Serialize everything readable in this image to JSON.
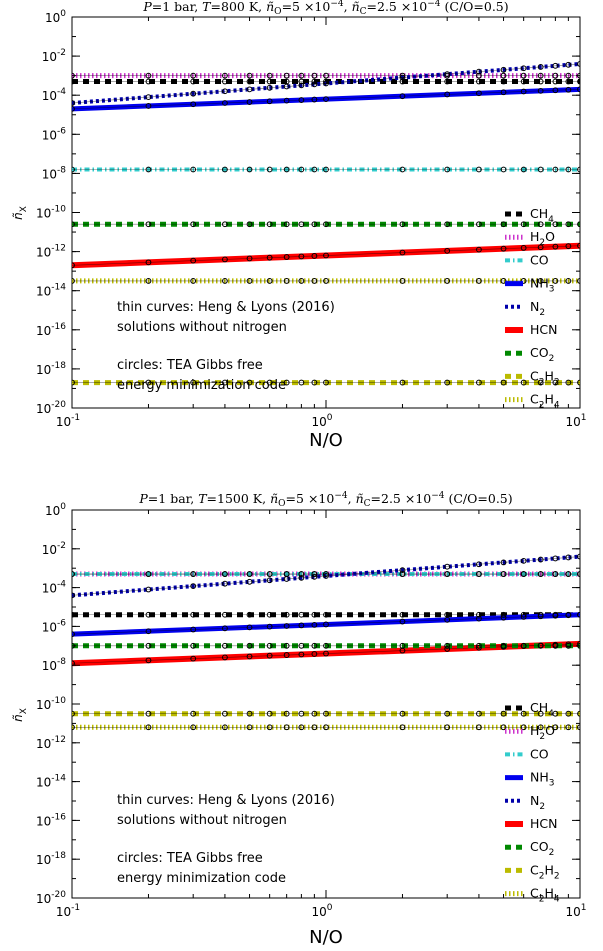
{
  "chart_data": [
    {
      "type": "line",
      "title": "P=1 bar, T=800 K, ñ_O=5×10^-4, ñ_C=2.5×10^-4 (C/O=0.5)",
      "title_parts": {
        "p": "P",
        "p_rest": "=1 bar, ",
        "t": "T",
        "t_rest": "=800 K, ",
        "no": "=5 ×10",
        "no_exp": "−4",
        "nc": "=2.5 ×10",
        "nc_exp": "−4",
        "ratio": " (C/O=0.5)"
      },
      "xlabel": "N/O",
      "ylabel": "ñ_X",
      "xscale": "log",
      "yscale": "log",
      "xlim": [
        0.1,
        10
      ],
      "ylim": [
        1e-20,
        1
      ],
      "x_ticks": [
        {
          "base": "10",
          "exp": "-1"
        },
        {
          "base": "10",
          "exp": "0"
        },
        {
          "base": "10",
          "exp": "1"
        }
      ],
      "y_ticks": [
        {
          "base": "10",
          "exp": "0"
        },
        {
          "base": "10",
          "exp": "-2"
        },
        {
          "base": "10",
          "exp": "-4"
        },
        {
          "base": "10",
          "exp": "-6"
        },
        {
          "base": "10",
          "exp": "-8"
        },
        {
          "base": "10",
          "exp": "-10"
        },
        {
          "base": "10",
          "exp": "-12"
        },
        {
          "base": "10",
          "exp": "-14"
        },
        {
          "base": "10",
          "exp": "-16"
        },
        {
          "base": "10",
          "exp": "-18"
        },
        {
          "base": "10",
          "exp": "-20"
        }
      ],
      "annotations": [
        "thin curves: Heng & Lyons (2016)",
        "solutions without nitrogen",
        "circles: TEA Gibbs free",
        "energy minimization code"
      ],
      "series": [
        {
          "name": "CH4",
          "label": "CH",
          "sub": "4",
          "color": "#000000",
          "style": "square-dash",
          "width": 5,
          "log10_y": [
            -3.3,
            -3.3
          ]
        },
        {
          "name": "H2O",
          "label": "H",
          "sub": "2",
          "label_tail": "O",
          "color": "#cc33cc",
          "style": "tick-dense",
          "width": 5,
          "log10_y": [
            -3.0,
            -3.0
          ]
        },
        {
          "name": "CO",
          "label": "CO",
          "sub": "",
          "color": "#33cccc",
          "style": "dash-dot",
          "width": 4,
          "log10_y": [
            -7.8,
            -7.8
          ]
        },
        {
          "name": "NH3",
          "label": "NH",
          "sub": "3",
          "color": "#0000ee",
          "style": "solid",
          "width": 5,
          "log10_y": [
            -4.7,
            -3.7
          ]
        },
        {
          "name": "N2",
          "label": "N",
          "sub": "2",
          "color": "#0000aa",
          "style": "dotted",
          "width": 4,
          "log10_y": [
            -4.4,
            -2.4
          ]
        },
        {
          "name": "HCN",
          "label": "HCN",
          "sub": "",
          "color": "#ff0000",
          "style": "solid",
          "width": 6,
          "log10_y": [
            -12.7,
            -11.7
          ]
        },
        {
          "name": "CO2",
          "label": "CO",
          "sub": "2",
          "color": "#008800",
          "style": "square-dash",
          "width": 5,
          "log10_y": [
            -10.6,
            -10.6
          ]
        },
        {
          "name": "C2H2",
          "label": "C",
          "sub": "2",
          "label_mid": "H",
          "sub2": "2",
          "color": "#bbbb00",
          "style": "square-dash",
          "width": 5,
          "log10_y": [
            -18.7,
            -18.7
          ]
        },
        {
          "name": "C2H4",
          "label": "C",
          "sub": "2",
          "label_mid": "H",
          "sub2": "4",
          "color": "#bbbb00",
          "style": "tick-dense",
          "width": 5,
          "log10_y": [
            -13.5,
            -13.5
          ]
        }
      ],
      "circles_x": [
        0.1,
        0.2,
        0.3,
        0.4,
        0.5,
        0.6,
        0.7,
        0.8,
        0.9,
        1,
        2,
        3,
        4,
        5,
        6,
        7,
        8,
        9,
        10
      ]
    },
    {
      "type": "line",
      "title": "P=1 bar, T=1500 K, ñ_O=5×10^-4, ñ_C=2.5×10^-4 (C/O=0.5)",
      "title_parts": {
        "p": "P",
        "p_rest": "=1 bar, ",
        "t": "T",
        "t_rest": "=1500 K, ",
        "no": "=5 ×10",
        "no_exp": "−4",
        "nc": "=2.5 ×10",
        "nc_exp": "−4",
        "ratio": " (C/O=0.5)"
      },
      "xlabel": "N/O",
      "ylabel": "ñ_X",
      "xscale": "log",
      "yscale": "log",
      "xlim": [
        0.1,
        10
      ],
      "ylim": [
        1e-20,
        1
      ],
      "x_ticks": [
        {
          "base": "10",
          "exp": "-1"
        },
        {
          "base": "10",
          "exp": "0"
        },
        {
          "base": "10",
          "exp": "1"
        }
      ],
      "y_ticks": [
        {
          "base": "10",
          "exp": "0"
        },
        {
          "base": "10",
          "exp": "-2"
        },
        {
          "base": "10",
          "exp": "-4"
        },
        {
          "base": "10",
          "exp": "-6"
        },
        {
          "base": "10",
          "exp": "-8"
        },
        {
          "base": "10",
          "exp": "-10"
        },
        {
          "base": "10",
          "exp": "-12"
        },
        {
          "base": "10",
          "exp": "-14"
        },
        {
          "base": "10",
          "exp": "-16"
        },
        {
          "base": "10",
          "exp": "-18"
        },
        {
          "base": "10",
          "exp": "-20"
        }
      ],
      "annotations": [
        "thin curves: Heng & Lyons (2016)",
        "solutions without nitrogen",
        "circles: TEA Gibbs free",
        "energy minimization code"
      ],
      "series": [
        {
          "name": "CH4",
          "label": "CH",
          "sub": "4",
          "color": "#000000",
          "style": "square-dash",
          "width": 5,
          "log10_y": [
            -5.4,
            -5.4
          ]
        },
        {
          "name": "H2O",
          "label": "H",
          "sub": "2",
          "label_tail": "O",
          "color": "#cc33cc",
          "style": "tick-dense",
          "width": 5,
          "log10_y": [
            -3.3,
            -3.3
          ]
        },
        {
          "name": "CO",
          "label": "CO",
          "sub": "",
          "color": "#33cccc",
          "style": "dash-dot",
          "width": 4,
          "log10_y": [
            -3.3,
            -3.3
          ]
        },
        {
          "name": "NH3",
          "label": "NH",
          "sub": "3",
          "color": "#0000ee",
          "style": "solid",
          "width": 5,
          "log10_y": [
            -6.4,
            -5.4
          ]
        },
        {
          "name": "N2",
          "label": "N",
          "sub": "2",
          "color": "#0000aa",
          "style": "dotted",
          "width": 4,
          "log10_y": [
            -4.4,
            -2.4
          ]
        },
        {
          "name": "HCN",
          "label": "HCN",
          "sub": "",
          "color": "#ff0000",
          "style": "solid",
          "width": 6,
          "log10_y": [
            -7.9,
            -6.9
          ]
        },
        {
          "name": "CO2",
          "label": "CO",
          "sub": "2",
          "color": "#008800",
          "style": "square-dash",
          "width": 5,
          "log10_y": [
            -7.0,
            -7.0
          ]
        },
        {
          "name": "C2H2",
          "label": "C",
          "sub": "2",
          "label_mid": "H",
          "sub2": "2",
          "color": "#bbbb00",
          "style": "square-dash",
          "width": 5,
          "log10_y": [
            -10.5,
            -10.5
          ]
        },
        {
          "name": "C2H4",
          "label": "C",
          "sub": "2",
          "label_mid": "H",
          "sub2": "4",
          "color": "#bbbb00",
          "style": "tick-dense",
          "width": 5,
          "log10_y": [
            -11.2,
            -11.2
          ]
        }
      ],
      "circles_x": [
        0.1,
        0.2,
        0.3,
        0.4,
        0.5,
        0.6,
        0.7,
        0.8,
        0.9,
        1,
        2,
        3,
        4,
        5,
        6,
        7,
        8,
        9,
        10
      ]
    }
  ]
}
